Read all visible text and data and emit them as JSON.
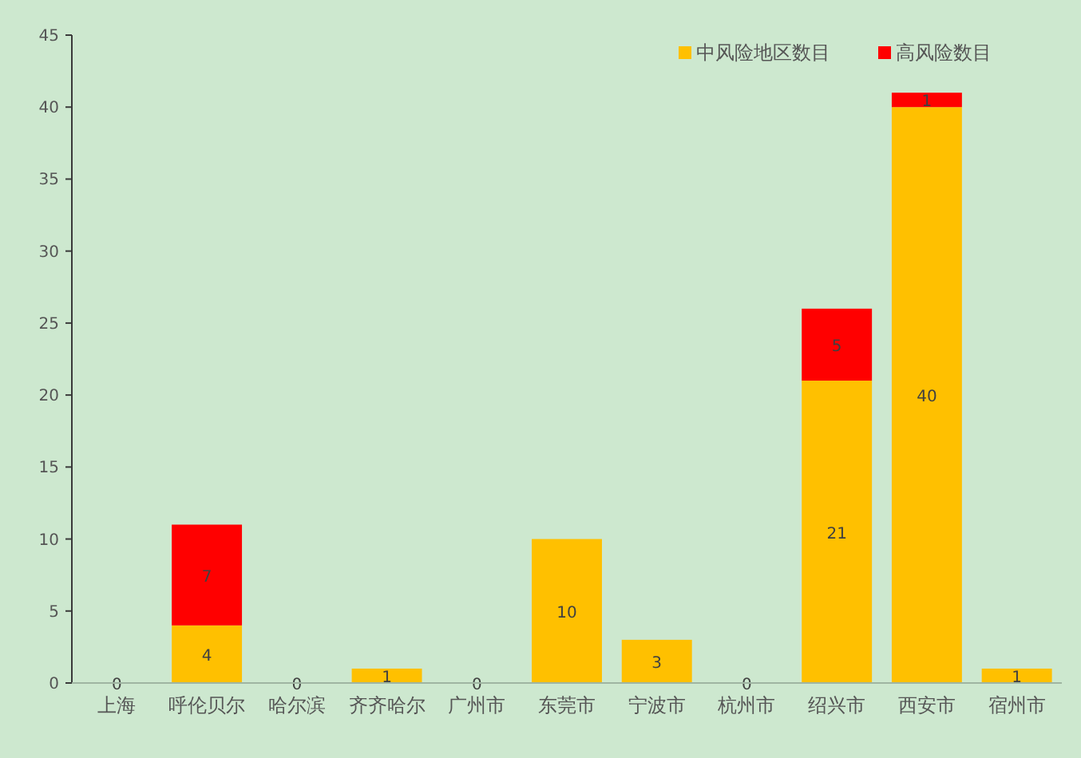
{
  "chart_data": {
    "type": "bar",
    "stacked": true,
    "categories": [
      "上海",
      "呼伦贝尔",
      "哈尔滨",
      "齐齐哈尔",
      "广州市",
      "东莞市",
      "宁波市",
      "杭州市",
      "绍兴市",
      "西安市",
      "宿州市"
    ],
    "series": [
      {
        "name": "中风险地区数目",
        "color": "#ffc000",
        "values": [
          0,
          4,
          0,
          1,
          0,
          10,
          3,
          0,
          21,
          40,
          1
        ],
        "value_labels": [
          "0",
          "4",
          "0",
          "1",
          "0",
          "10",
          "3",
          "0",
          "21",
          "40",
          "1"
        ]
      },
      {
        "name": "高风险数目",
        "color": "#ff0000",
        "values": [
          0,
          7,
          0,
          0,
          0,
          0,
          0,
          0,
          5,
          1,
          0
        ],
        "value_labels": [
          null,
          "7",
          null,
          null,
          null,
          null,
          null,
          null,
          "5",
          "1",
          null
        ]
      }
    ],
    "ylim": [
      0,
      45
    ],
    "yticks": [
      0,
      5,
      10,
      15,
      20,
      25,
      30,
      35,
      40,
      45
    ],
    "grid": false,
    "legend": "top right"
  }
}
